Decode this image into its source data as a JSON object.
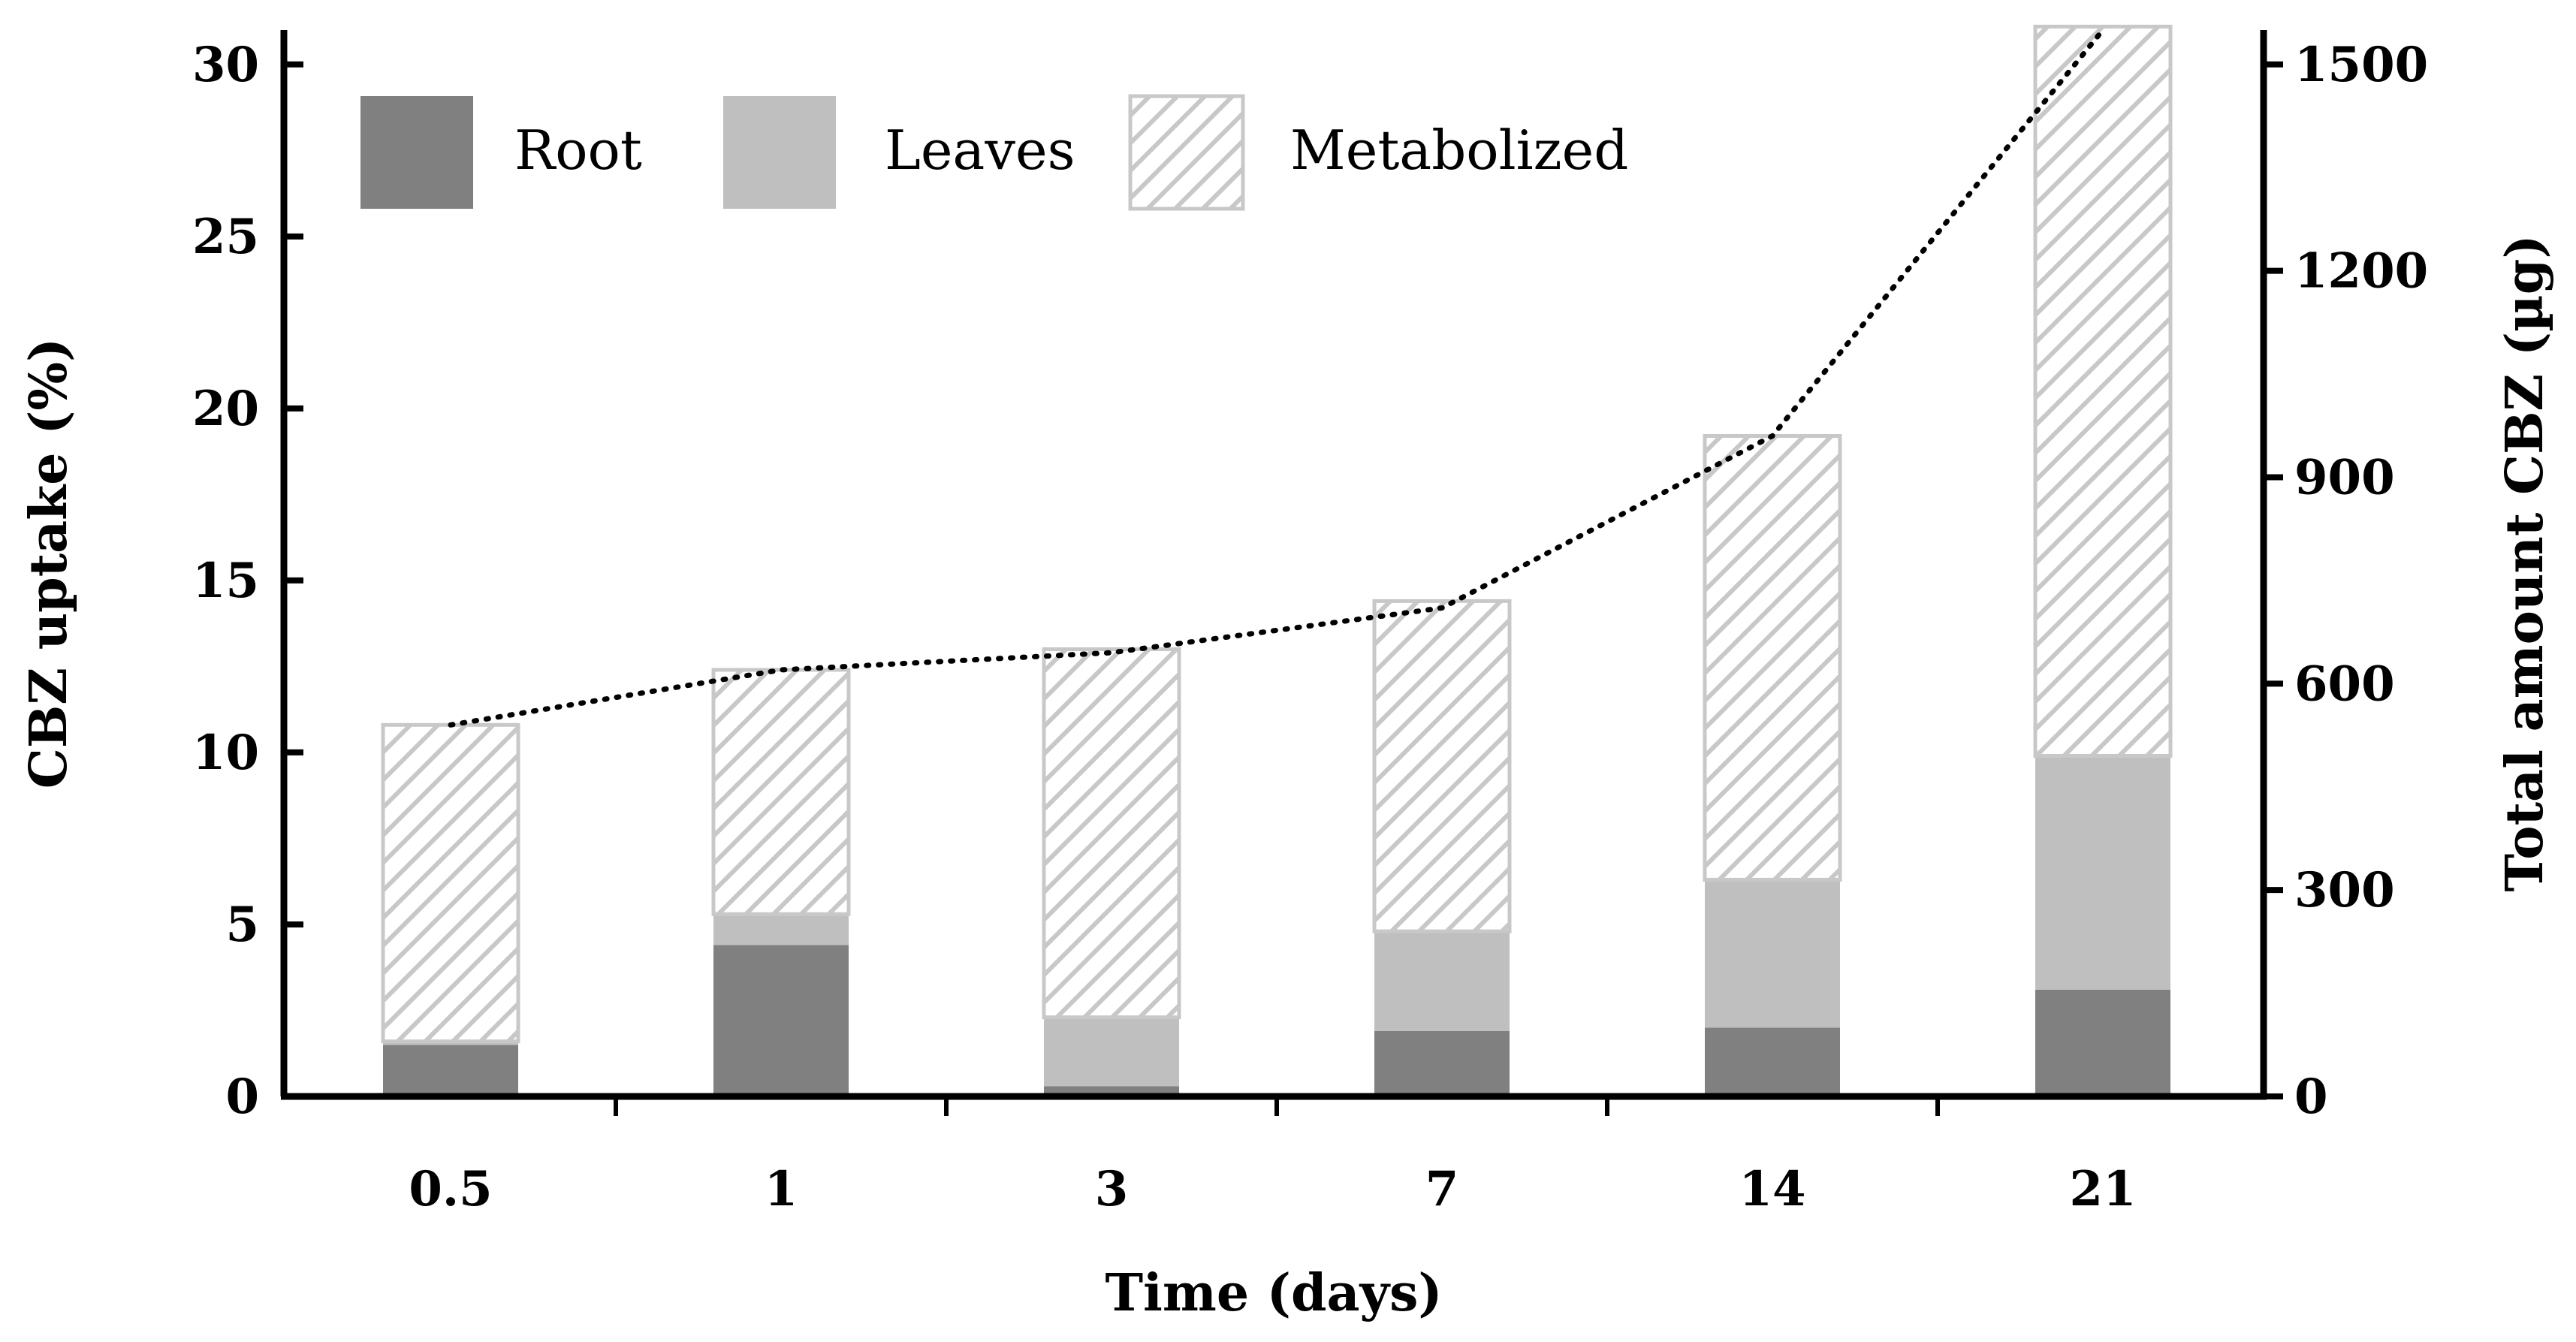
{
  "chart_data": {
    "type": "bar",
    "stacked": true,
    "categories": [
      "0.5",
      "1",
      "3",
      "7",
      "14",
      "21"
    ],
    "series": [
      {
        "name": "Root",
        "values": [
          1.5,
          4.4,
          0.3,
          1.9,
          2.0,
          3.1
        ],
        "color": "#808080"
      },
      {
        "name": "Leaves",
        "values": [
          0.1,
          0.9,
          2.0,
          2.9,
          4.3,
          6.8
        ],
        "color": "#bfbfbf"
      },
      {
        "name": "Metabolized",
        "values": [
          9.2,
          7.1,
          10.7,
          9.6,
          12.9,
          21.2
        ],
        "color": "#bfbfbf",
        "pattern": "diagonal-hatch"
      }
    ],
    "line_series": {
      "name": "Total amount CBZ",
      "axis": "right",
      "style": "dotted",
      "color": "#000000",
      "values": [
        540,
        620,
        645,
        710,
        960,
        1550
      ]
    },
    "xlabel": "Time (days)",
    "ylabel": "CBZ uptake (%)",
    "y2label": "Total amount CBZ (µg)",
    "ylim": [
      0,
      31
    ],
    "y2lim": [
      0,
      1550
    ],
    "yticks": [
      0,
      5,
      10,
      15,
      20,
      25,
      30
    ],
    "y2ticks": [
      0,
      300,
      600,
      900,
      1200,
      1500
    ],
    "legend_position": "top-left"
  }
}
